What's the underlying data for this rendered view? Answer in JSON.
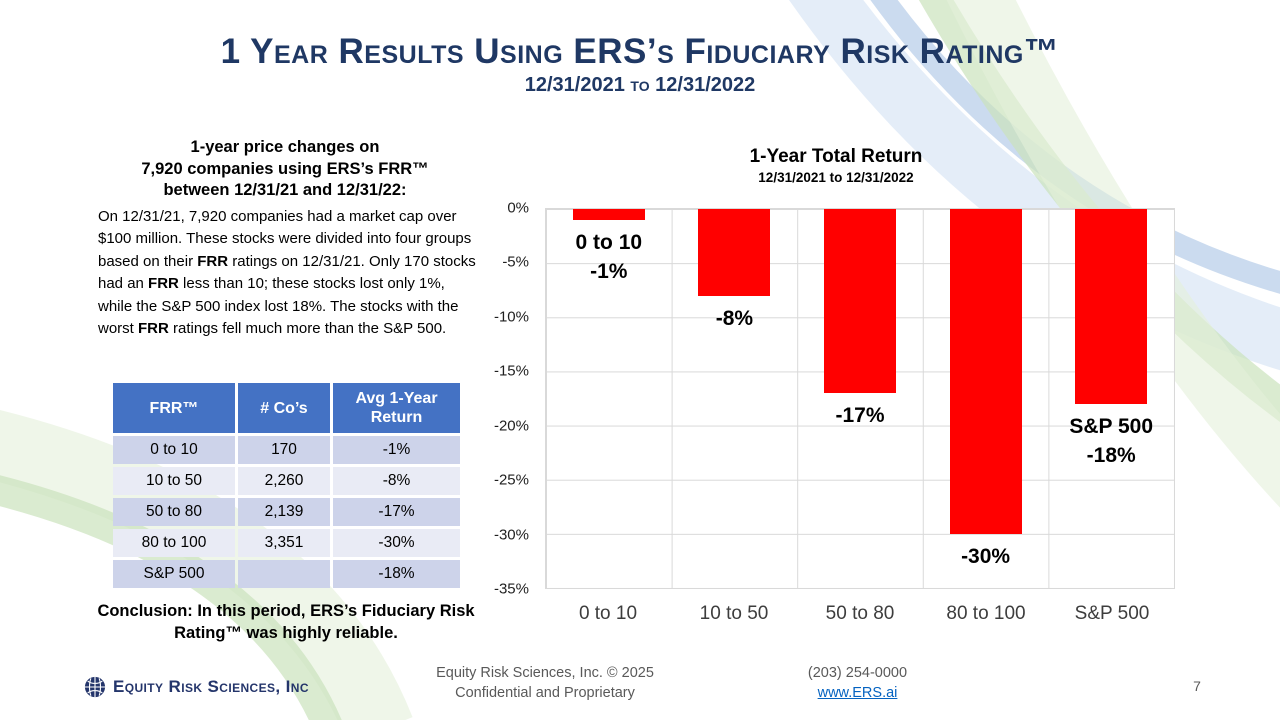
{
  "slide": {
    "title": "1 Year Results Using ERS’s Fiduciary Risk Rating™",
    "subtitle": "12/31/2021 to 12/31/2022",
    "page_number": "7"
  },
  "left_panel": {
    "heading_lines": [
      "1-year price changes on",
      "7,920 companies using ERS’s FRR™",
      "between 12/31/21 and 12/31/22:"
    ],
    "paragraph": {
      "t1": "On 12/31/21, 7,920 companies had a market cap over $100 million. These stocks were divided into four groups based on their ",
      "b1": "FRR",
      "t2": " ratings on 12/31/21. Only 170 stocks had an ",
      "b2": "FRR",
      "t3": " less than 10; these stocks lost only 1%, while the S&P 500 index lost 18%. The stocks with the worst ",
      "b3": "FRR",
      "t4": " ratings fell much more than the S&P 500."
    },
    "conclusion": "Conclusion: In this period, ERS’s Fiduciary Risk Rating™ was highly reliable."
  },
  "table": {
    "headers": [
      "FRR™",
      "# Co’s",
      "Avg 1-Year Return"
    ],
    "rows": [
      [
        "0 to 10",
        "170",
        "-1%"
      ],
      [
        "10 to 50",
        "2,260",
        "-8%"
      ],
      [
        "50 to 80",
        "2,139",
        "-17%"
      ],
      [
        "80 to 100",
        "3,351",
        "-30%"
      ],
      [
        "S&P 500",
        "",
        "-18%"
      ]
    ]
  },
  "chart": {
    "y_ticks": [
      "0%",
      "-5%",
      "-10%",
      "-15%",
      "-20%",
      "-25%",
      "-30%",
      "-35%"
    ]
  },
  "chart_data": {
    "type": "bar",
    "title": "1-Year Total Return",
    "subtitle": "12/31/2021 to 12/31/2022",
    "categories": [
      "0 to 10",
      "10 to 50",
      "50 to 80",
      "80 to 100",
      "S&P 500"
    ],
    "values": [
      -1,
      -8,
      -17,
      -30,
      -18
    ],
    "data_labels": [
      [
        "0 to 10",
        "-1%"
      ],
      [
        "-8%"
      ],
      [
        "-17%"
      ],
      [
        "-30%"
      ],
      [
        "S&P 500",
        "-18%"
      ]
    ],
    "xlabel": "",
    "ylabel": "",
    "ylim": [
      -35,
      0
    ],
    "ytick_step": 5,
    "grid": true,
    "legend": false,
    "bar_color": "#FF0000"
  },
  "footer": {
    "logo_text": "Equity Risk Sciences, Inc",
    "copyright_line": "Equity Risk Sciences, Inc. © 2025",
    "confidential_line": "Confidential and Proprietary",
    "phone": "(203) 254-0000",
    "website": "www.ERS.ai"
  },
  "colors": {
    "navy": "#1F3864",
    "accent_red": "#FF0000",
    "table_header_blue": "#4472C4",
    "row_dark": "#CDD3EA",
    "row_light": "#E9EBF5",
    "grid_gray": "#D9D9D9",
    "link_blue": "#0563C1",
    "footer_gray": "#595959"
  }
}
